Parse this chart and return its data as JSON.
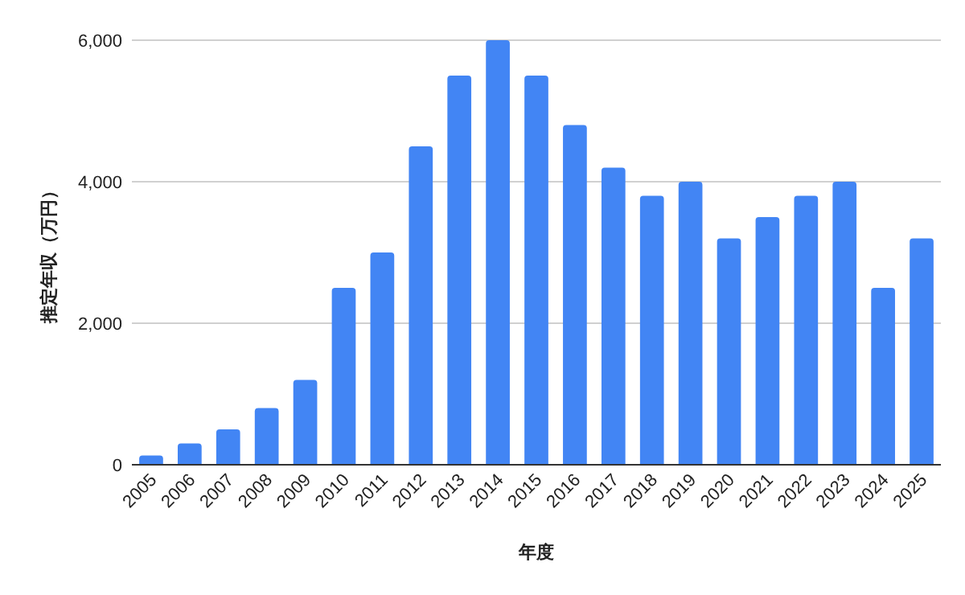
{
  "chart_data": {
    "type": "bar",
    "xlabel": "年度",
    "ylabel": "推定年収（万円）",
    "categories": [
      "2005",
      "2006",
      "2007",
      "2008",
      "2009",
      "2010",
      "2011",
      "2012",
      "2013",
      "2014",
      "2015",
      "2016",
      "2017",
      "2018",
      "2019",
      "2020",
      "2021",
      "2022",
      "2023",
      "2024",
      "2025"
    ],
    "values": [
      130,
      300,
      500,
      800,
      1200,
      2500,
      3000,
      4500,
      5500,
      6000,
      5500,
      4800,
      4200,
      3800,
      4000,
      3200,
      3500,
      3800,
      4000,
      2500,
      3200
    ],
    "color": "#4285f4",
    "ylim": [
      0,
      6000
    ],
    "yticks": [
      {
        "value": 0,
        "label": "0"
      },
      {
        "value": 2000,
        "label": "2,000"
      },
      {
        "value": 4000,
        "label": "4,000"
      },
      {
        "value": 6000,
        "label": "6,000"
      }
    ],
    "grid": "y"
  }
}
